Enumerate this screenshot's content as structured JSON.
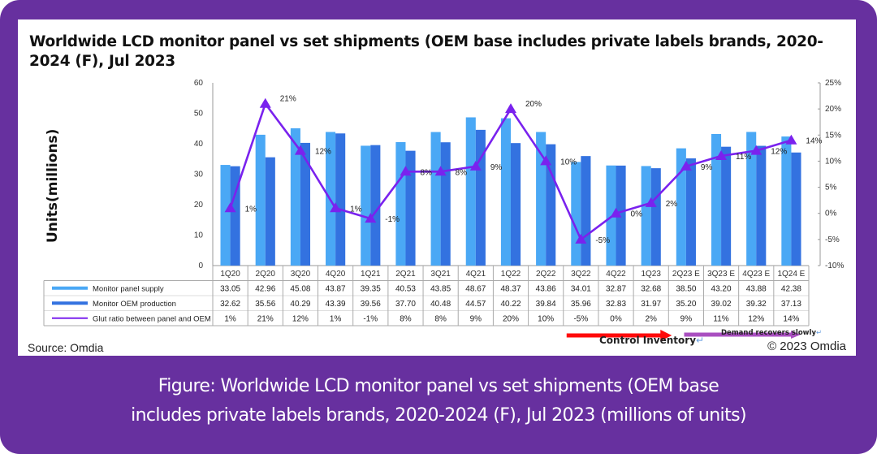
{
  "chart_data": {
    "type": "bar+line",
    "title": "Worldwide LCD monitor panel vs set shipments (OEM base includes private labels brands, 2020-2024 (F), Jul 2023",
    "ylabel": "Units(millions)",
    "ylabel_right": "",
    "categories": [
      "1Q20",
      "2Q20",
      "3Q20",
      "4Q20",
      "1Q21",
      "2Q21",
      "3Q21",
      "4Q21",
      "1Q22",
      "2Q22",
      "3Q22",
      "4Q22",
      "1Q23",
      "2Q23 E",
      "3Q23 E",
      "4Q23 E",
      "1Q24 E"
    ],
    "ylim": [
      0,
      60
    ],
    "yticks": [
      0,
      10,
      20,
      30,
      40,
      50,
      60
    ],
    "ylim_right": [
      -10,
      25
    ],
    "yticks_right": [
      "-10%",
      "-5%",
      "0%",
      "5%",
      "10%",
      "15%",
      "20%",
      "25%"
    ],
    "series": [
      {
        "name": "Monitor panel supply",
        "type": "bar",
        "axis": "left",
        "color": "#4aa8f5",
        "values": [
          33.05,
          42.96,
          45.08,
          43.87,
          39.35,
          40.53,
          43.85,
          48.67,
          48.37,
          43.86,
          34.01,
          32.87,
          32.68,
          38.5,
          43.2,
          43.88,
          42.38
        ],
        "display": [
          "33.05",
          "42.96",
          "45.08",
          "43.87",
          "39.35",
          "40.53",
          "43.85",
          "48.67",
          "48.37",
          "43.86",
          "34.01",
          "32.87",
          "32.68",
          "38.50",
          "43.20",
          "43.88",
          "42.38"
        ]
      },
      {
        "name": "Monitor OEM production",
        "type": "bar",
        "axis": "left",
        "color": "#3372e0",
        "values": [
          32.62,
          35.56,
          40.29,
          43.39,
          39.56,
          37.7,
          40.48,
          44.57,
          40.22,
          39.84,
          35.96,
          32.83,
          31.97,
          35.2,
          39.02,
          39.32,
          37.13
        ],
        "display": [
          "32.62",
          "35.56",
          "40.29",
          "43.39",
          "39.56",
          "37.70",
          "40.48",
          "44.57",
          "40.22",
          "39.84",
          "35.96",
          "32.83",
          "31.97",
          "35.20",
          "39.02",
          "39.32",
          "37.13"
        ]
      },
      {
        "name": "Glut ratio between panel and OEM",
        "type": "line",
        "axis": "right",
        "color": "#7a22ee",
        "marker": "triangle",
        "values": [
          1,
          21,
          12,
          1,
          -1,
          8,
          8,
          9,
          20,
          10,
          -5,
          0,
          2,
          9,
          11,
          12,
          14
        ],
        "display": [
          "1%",
          "21%",
          "12%",
          "1%",
          "-1%",
          "8%",
          "8%",
          "9%",
          "20%",
          "10%",
          "-5%",
          "0%",
          "2%",
          "9%",
          "11%",
          "12%",
          "14%"
        ]
      }
    ],
    "legend": "table-below",
    "grid": false,
    "annotations": [
      {
        "text": "Control Inventory",
        "arrow_color": "#ff0a0a",
        "span": [
          "3Q22",
          "2Q23 E"
        ]
      },
      {
        "text": "Demand recovers slowly",
        "arrow_color": "#a94fc0",
        "span": [
          "3Q23 E",
          "1Q24 E"
        ]
      }
    ]
  },
  "source": "Source: Omdia",
  "copyright": "© 2023 Omdia",
  "return_mark": "↵",
  "caption_line1": "Figure: Worldwide LCD monitor panel vs set shipments (OEM base",
  "caption_line2": "includes private labels brands, 2020-2024 (F), Jul 2023 (millions of units)",
  "colors": {
    "frame": "#67309f",
    "panel": "#ffffff"
  }
}
